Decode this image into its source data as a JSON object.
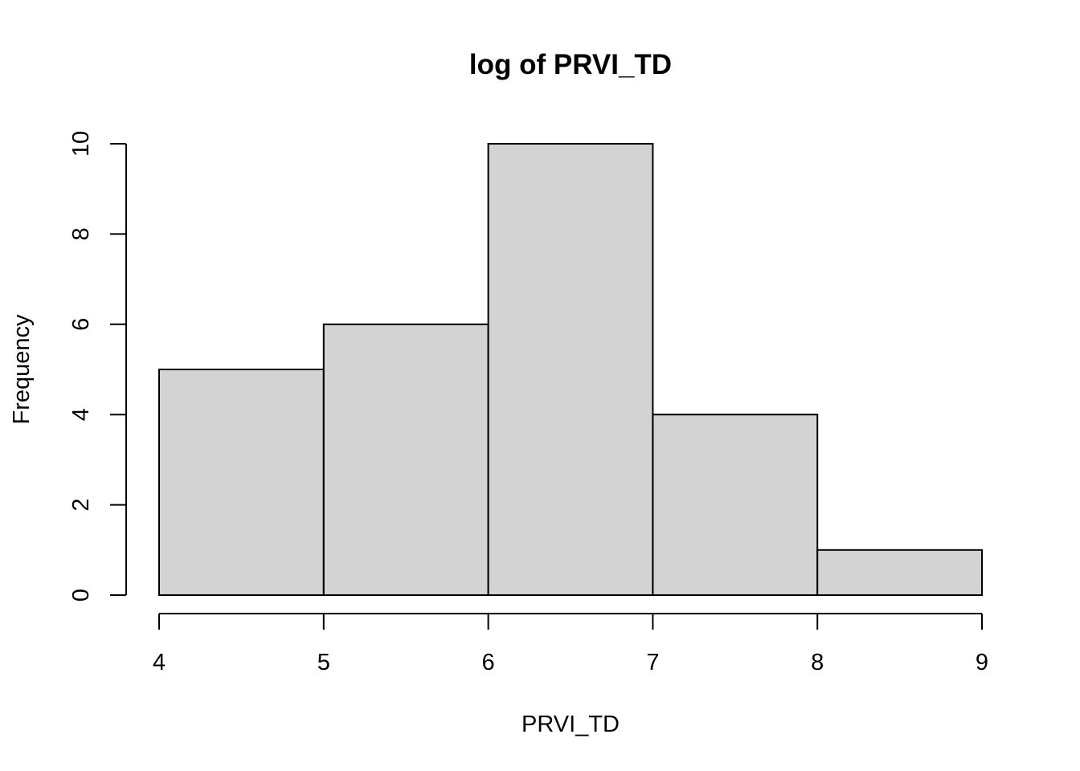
{
  "chart_data": {
    "type": "bar",
    "title": "log of PRVI_TD",
    "xlabel": "PRVI_TD",
    "ylabel": "Frequency",
    "bins": [
      {
        "x0": 4,
        "x1": 5,
        "count": 5
      },
      {
        "x0": 5,
        "x1": 6,
        "count": 6
      },
      {
        "x0": 6,
        "x1": 7,
        "count": 10
      },
      {
        "x0": 7,
        "x1": 8,
        "count": 4
      },
      {
        "x0": 8,
        "x1": 9,
        "count": 1
      }
    ],
    "xticks": [
      "4",
      "5",
      "6",
      "7",
      "8",
      "9"
    ],
    "yticks": [
      "0",
      "2",
      "4",
      "6",
      "8",
      "10"
    ],
    "xlim": [
      4,
      9
    ],
    "ylim": [
      0,
      10
    ],
    "grid": false,
    "colors": {
      "bar_fill": "#d3d3d3",
      "bar_stroke": "#000000"
    }
  }
}
